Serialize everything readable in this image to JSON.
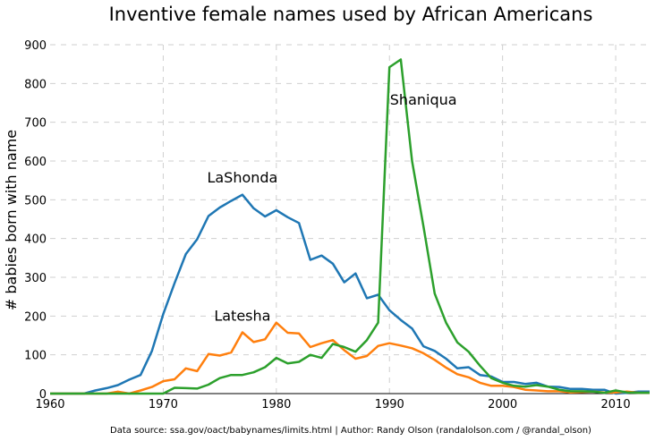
{
  "chart_data": {
    "type": "line",
    "title": "Inventive female names used by African Americans",
    "xlabel": "",
    "ylabel": "# babies born with name",
    "xlim": [
      1960,
      2013
    ],
    "ylim": [
      0,
      900
    ],
    "xticks": [
      "1960",
      "1970",
      "1980",
      "1990",
      "2000",
      "2010"
    ],
    "yticks": [
      "0",
      "100",
      "200",
      "300",
      "400",
      "500",
      "600",
      "700",
      "800",
      "900"
    ],
    "grid": true,
    "legend": "none",
    "x": [
      1960,
      1961,
      1962,
      1963,
      1964,
      1965,
      1966,
      1967,
      1968,
      1969,
      1970,
      1971,
      1972,
      1973,
      1974,
      1975,
      1976,
      1977,
      1978,
      1979,
      1980,
      1981,
      1982,
      1983,
      1984,
      1985,
      1986,
      1987,
      1988,
      1989,
      1990,
      1991,
      1992,
      1993,
      1994,
      1995,
      1996,
      1997,
      1998,
      1999,
      2000,
      2001,
      2002,
      2003,
      2004,
      2005,
      2006,
      2007,
      2008,
      2009,
      2010,
      2011,
      2012,
      2013
    ],
    "series": [
      {
        "name": "LaShonda",
        "color": "#1f77b4",
        "values": [
          0,
          0,
          0,
          0,
          8,
          14,
          22,
          36,
          48,
          110,
          205,
          285,
          360,
          398,
          458,
          480,
          497,
          513,
          478,
          457,
          473,
          455,
          440,
          345,
          356,
          335,
          287,
          310,
          246,
          255,
          215,
          190,
          168,
          122,
          110,
          90,
          65,
          68,
          48,
          44,
          30,
          30,
          25,
          28,
          18,
          17,
          12,
          12,
          10,
          10,
          0,
          2,
          5,
          5
        ]
      },
      {
        "name": "Latesha",
        "color": "#ff7f0e",
        "values": [
          0,
          0,
          0,
          0,
          0,
          0,
          5,
          0,
          8,
          17,
          32,
          37,
          65,
          58,
          102,
          98,
          106,
          158,
          133,
          140,
          183,
          157,
          155,
          120,
          130,
          138,
          112,
          90,
          97,
          123,
          130,
          124,
          117,
          104,
          87,
          67,
          50,
          42,
          28,
          20,
          20,
          17,
          10,
          8,
          6,
          6,
          3,
          4,
          5,
          3,
          3,
          5,
          2,
          2
        ]
      },
      {
        "name": "Shaniqua",
        "color": "#2ca02c",
        "values": [
          0,
          0,
          0,
          0,
          0,
          0,
          0,
          0,
          0,
          0,
          0,
          15,
          14,
          13,
          23,
          40,
          48,
          48,
          55,
          68,
          92,
          78,
          82,
          100,
          92,
          128,
          120,
          108,
          138,
          183,
          842,
          862,
          600,
          432,
          258,
          183,
          132,
          108,
          72,
          40,
          28,
          20,
          18,
          22,
          18,
          10,
          6,
          6,
          5,
          2,
          8,
          3,
          2,
          2
        ]
      }
    ],
    "annotations": [
      {
        "text": "LaShonda",
        "x": 1977,
        "y": 545
      },
      {
        "text": "Latesha",
        "x": 1977,
        "y": 188
      },
      {
        "text": "Shaniqua",
        "x": 1993,
        "y": 745
      }
    ],
    "footer": "Data source: ssa.gov/oact/babynames/limits.html | Author: Randy Olson (randalolson.com / @randal_olson)"
  }
}
